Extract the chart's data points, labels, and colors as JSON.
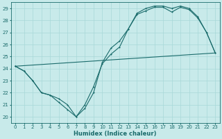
{
  "xlabel": "Humidex (Indice chaleur)",
  "xlim": [
    -0.5,
    23.5
  ],
  "ylim": [
    19.5,
    29.5
  ],
  "yticks": [
    20,
    21,
    22,
    23,
    24,
    25,
    26,
    27,
    28,
    29
  ],
  "xticks": [
    0,
    1,
    2,
    3,
    4,
    5,
    6,
    7,
    8,
    9,
    10,
    11,
    12,
    13,
    14,
    15,
    16,
    17,
    18,
    19,
    20,
    21,
    22,
    23
  ],
  "bg_color": "#c8eaea",
  "line_color": "#1a6b6b",
  "grid_color": "#a8d8d8",
  "line1_x": [
    0,
    1,
    2,
    3,
    4,
    5,
    6,
    7,
    8,
    9,
    10,
    11,
    12,
    13,
    14,
    15,
    16,
    17,
    18,
    19,
    20,
    21,
    22,
    23
  ],
  "line1_y": [
    24.2,
    23.8,
    23.0,
    22.0,
    21.8,
    21.2,
    20.6,
    20.0,
    21.0,
    22.5,
    24.4,
    25.2,
    25.8,
    27.3,
    28.5,
    28.8,
    29.1,
    29.1,
    28.7,
    29.1,
    28.9,
    28.2,
    27.0,
    25.3
  ],
  "line2_x": [
    0,
    1,
    2,
    3,
    4,
    5,
    6,
    7,
    8,
    9,
    10,
    11,
    12,
    13,
    14,
    15,
    16,
    17,
    18,
    19,
    20,
    21,
    22,
    23
  ],
  "line2_y": [
    24.2,
    23.8,
    23.0,
    22.0,
    21.8,
    21.5,
    21.0,
    20.0,
    20.7,
    22.0,
    24.5,
    25.7,
    26.3,
    27.3,
    28.6,
    29.0,
    29.2,
    29.2,
    29.0,
    29.2,
    29.0,
    28.3,
    27.0,
    25.3
  ],
  "line3_x": [
    0,
    23
  ],
  "line3_y": [
    24.2,
    25.3
  ]
}
